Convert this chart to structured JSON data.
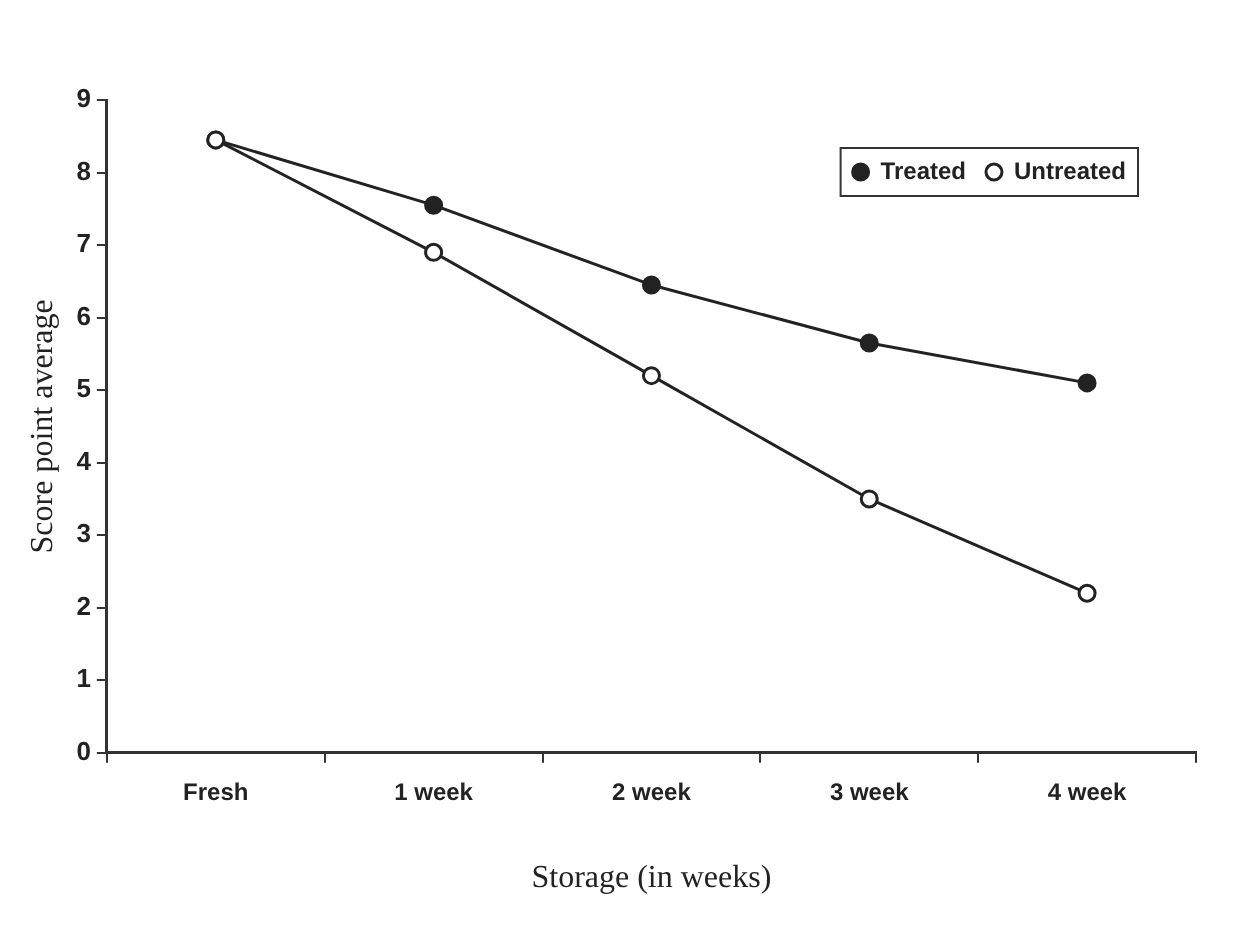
{
  "chart_data": {
    "type": "line",
    "xlabel": "Storage (in weeks)",
    "ylabel": "Score point average",
    "categories": [
      "Fresh",
      "1 week",
      "2 week",
      "3 week",
      "4 week"
    ],
    "series": [
      {
        "name": "Treated",
        "color": "#222222",
        "marker": "circle",
        "values": [
          8.45,
          7.55,
          6.45,
          5.65,
          5.1
        ]
      },
      {
        "name": "Untreated",
        "color": "#222222",
        "marker": "circle",
        "values": [
          8.45,
          6.9,
          5.2,
          3.5,
          2.2
        ]
      }
    ],
    "ylim": [
      0,
      9
    ],
    "yticks": [
      0,
      1,
      2,
      3,
      4,
      5,
      6,
      7,
      8,
      9
    ],
    "grid": false,
    "legend": "top right"
  }
}
